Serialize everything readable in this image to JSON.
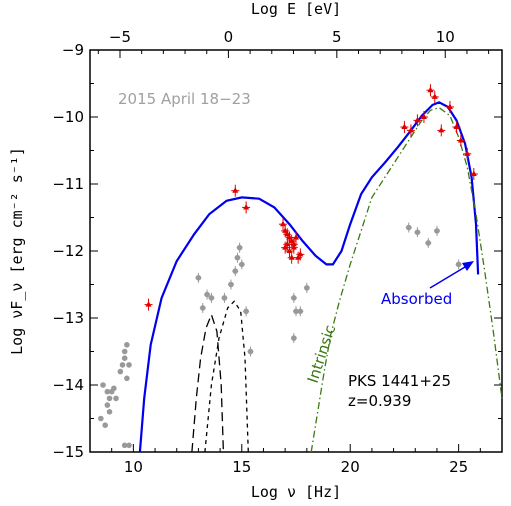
{
  "chart_data": {
    "type": "scatter",
    "title": "",
    "xlabel": "Log ν [Hz]",
    "ylabel": "Log νF_ν [erg cm⁻² s⁻¹]",
    "top_xlabel": "Log E [eV]",
    "xlim": [
      8,
      27
    ],
    "ylim": [
      -15,
      -9
    ],
    "xticks": [
      10,
      15,
      20,
      25
    ],
    "yticks": [
      -15,
      -14,
      -13,
      -12,
      -11,
      -10,
      -9
    ],
    "top_xticks": [
      -5,
      0,
      5,
      10
    ],
    "top_axis_offset": -14.383,
    "grid": false,
    "legend": "none",
    "annotations": {
      "date": "2015 April 18−23",
      "source_name": "PKS 1441+25",
      "redshift": "z=0.939",
      "intrinsic": "Intrinsic",
      "absorbed": "Absorbed"
    },
    "colors": {
      "model": "#0000ee",
      "intrinsic": "#3a7a10",
      "flare_data": "#e00000",
      "archival_data": "#999999",
      "components": "#000000",
      "date_text": "#a0a0a0"
    },
    "series": [
      {
        "name": "",
        "kind": "model-absorbed",
        "points": [
          [
            10.3,
            -15
          ],
          [
            10.5,
            -14.2
          ],
          [
            10.8,
            -13.4
          ],
          [
            11.3,
            -12.7
          ],
          [
            12,
            -12.15
          ],
          [
            12.8,
            -11.75
          ],
          [
            13.5,
            -11.45
          ],
          [
            14.3,
            -11.25
          ],
          [
            15,
            -11.2
          ],
          [
            15.8,
            -11.22
          ],
          [
            16.5,
            -11.35
          ],
          [
            17.2,
            -11.6
          ],
          [
            17.8,
            -11.85
          ],
          [
            18.4,
            -12.07
          ],
          [
            18.9,
            -12.2
          ],
          [
            19.2,
            -12.2
          ],
          [
            19.6,
            -12.0
          ],
          [
            20,
            -11.6
          ],
          [
            20.5,
            -11.15
          ],
          [
            21,
            -10.9
          ],
          [
            21.6,
            -10.68
          ],
          [
            22.2,
            -10.45
          ],
          [
            22.8,
            -10.2
          ],
          [
            23.3,
            -9.98
          ],
          [
            23.8,
            -9.82
          ],
          [
            24.1,
            -9.78
          ],
          [
            24.5,
            -9.85
          ],
          [
            24.9,
            -10.05
          ],
          [
            25.3,
            -10.4
          ],
          [
            25.6,
            -10.9
          ],
          [
            25.8,
            -11.6
          ],
          [
            25.9,
            -12.35
          ]
        ]
      },
      {
        "name": "",
        "kind": "model-intrinsic",
        "points": [
          [
            18.2,
            -15
          ],
          [
            18.5,
            -14.4
          ],
          [
            18.8,
            -13.8
          ],
          [
            19.1,
            -13.25
          ],
          [
            19.5,
            -12.75
          ],
          [
            20,
            -12.2
          ],
          [
            20.5,
            -11.7
          ],
          [
            21,
            -11.2
          ],
          [
            21.6,
            -10.9
          ],
          [
            22.2,
            -10.6
          ],
          [
            22.8,
            -10.3
          ],
          [
            23.3,
            -10.05
          ],
          [
            23.7,
            -9.9
          ],
          [
            24.1,
            -9.86
          ],
          [
            24.6,
            -9.98
          ],
          [
            25,
            -10.3
          ],
          [
            25.4,
            -10.75
          ],
          [
            25.8,
            -11.45
          ],
          [
            26.2,
            -12.3
          ],
          [
            26.6,
            -13.2
          ],
          [
            27,
            -14.2
          ]
        ]
      },
      {
        "name": "",
        "kind": "component-long-dash",
        "points": [
          [
            12.7,
            -15
          ],
          [
            12.9,
            -14.2
          ],
          [
            13.1,
            -13.6
          ],
          [
            13.35,
            -13.15
          ],
          [
            13.6,
            -12.95
          ],
          [
            13.85,
            -13.2
          ],
          [
            14.05,
            -14.0
          ],
          [
            14.15,
            -15
          ]
        ]
      },
      {
        "name": "",
        "kind": "component-short-dash",
        "points": [
          [
            13.3,
            -15
          ],
          [
            13.6,
            -14.0
          ],
          [
            13.95,
            -13.3
          ],
          [
            14.35,
            -12.85
          ],
          [
            14.65,
            -12.75
          ],
          [
            14.95,
            -12.9
          ],
          [
            15.15,
            -13.6
          ],
          [
            15.3,
            -15
          ]
        ]
      },
      {
        "name": "",
        "kind": "flare-data",
        "points": [
          [
            10.7,
            -12.8
          ],
          [
            14.7,
            -11.1
          ],
          [
            15.2,
            -11.35
          ],
          [
            16.9,
            -11.6
          ],
          [
            17.0,
            -11.7
          ],
          [
            17.1,
            -11.75
          ],
          [
            17.2,
            -11.8
          ],
          [
            17.3,
            -11.85
          ],
          [
            17.4,
            -11.9
          ],
          [
            17.2,
            -12.0
          ],
          [
            17.4,
            -11.95
          ],
          [
            17.5,
            -11.8
          ],
          [
            17.1,
            -11.9
          ],
          [
            17.6,
            -12.1
          ],
          [
            17.7,
            -12.05
          ],
          [
            17.0,
            -11.95
          ],
          [
            17.3,
            -12.1
          ],
          [
            22.5,
            -10.15
          ],
          [
            22.8,
            -10.2
          ],
          [
            23.1,
            -10.05
          ],
          [
            23.4,
            -10.0
          ],
          [
            23.7,
            -9.6
          ],
          [
            23.9,
            -9.7
          ],
          [
            24.2,
            -10.2
          ],
          [
            24.6,
            -9.85
          ],
          [
            24.9,
            -10.15
          ],
          [
            25.1,
            -10.35
          ],
          [
            25.4,
            -10.55
          ],
          [
            25.7,
            -10.85
          ]
        ]
      },
      {
        "name": "",
        "kind": "archival-data",
        "points": [
          [
            8.6,
            -14.0
          ],
          [
            8.8,
            -14.1
          ],
          [
            8.9,
            -14.2
          ],
          [
            8.8,
            -14.3
          ],
          [
            8.9,
            -14.4
          ],
          [
            9.0,
            -14.1
          ],
          [
            9.2,
            -14.2
          ],
          [
            9.4,
            -13.8
          ],
          [
            9.5,
            -13.7
          ],
          [
            9.6,
            -13.6
          ],
          [
            9.7,
            -13.9
          ],
          [
            9.8,
            -13.7
          ],
          [
            9.6,
            -13.5
          ],
          [
            9.7,
            -13.4
          ],
          [
            8.5,
            -14.5
          ],
          [
            8.7,
            -14.6
          ],
          [
            9.1,
            -14.05
          ],
          [
            9.6,
            -14.9
          ],
          [
            9.8,
            -14.9
          ],
          [
            13.0,
            -12.4
          ],
          [
            13.2,
            -12.85
          ],
          [
            13.4,
            -12.65
          ],
          [
            13.6,
            -12.7
          ],
          [
            14.2,
            -12.7
          ],
          [
            14.5,
            -12.5
          ],
          [
            14.7,
            -12.3
          ],
          [
            14.8,
            -12.1
          ],
          [
            14.9,
            -11.95
          ],
          [
            15.0,
            -12.2
          ],
          [
            15.2,
            -12.9
          ],
          [
            15.4,
            -13.5
          ],
          [
            17.4,
            -12.7
          ],
          [
            17.5,
            -12.9
          ],
          [
            17.4,
            -13.3
          ],
          [
            17.7,
            -12.9
          ],
          [
            18.0,
            -12.55
          ],
          [
            22.7,
            -11.65
          ],
          [
            23.1,
            -11.72
          ],
          [
            23.6,
            -11.88
          ],
          [
            24.0,
            -11.7
          ],
          [
            25.0,
            -12.2
          ]
        ]
      }
    ]
  }
}
